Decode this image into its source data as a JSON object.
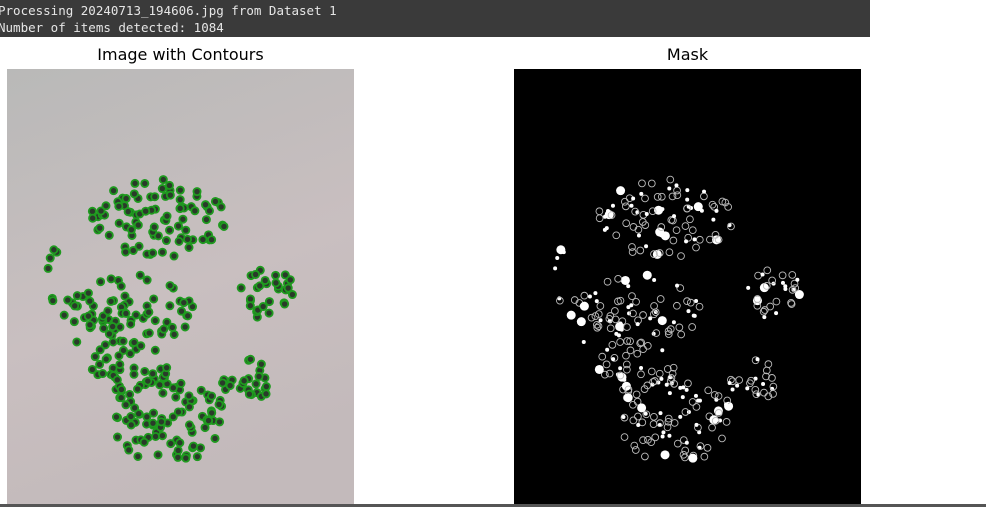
{
  "console": {
    "lines": [
      "Processing 20240713_194606.jpg from Dataset 1",
      "Number of items detected: 1084"
    ]
  },
  "figures": [
    {
      "title": "Image with Contours"
    },
    {
      "title": "Mask"
    }
  ]
}
